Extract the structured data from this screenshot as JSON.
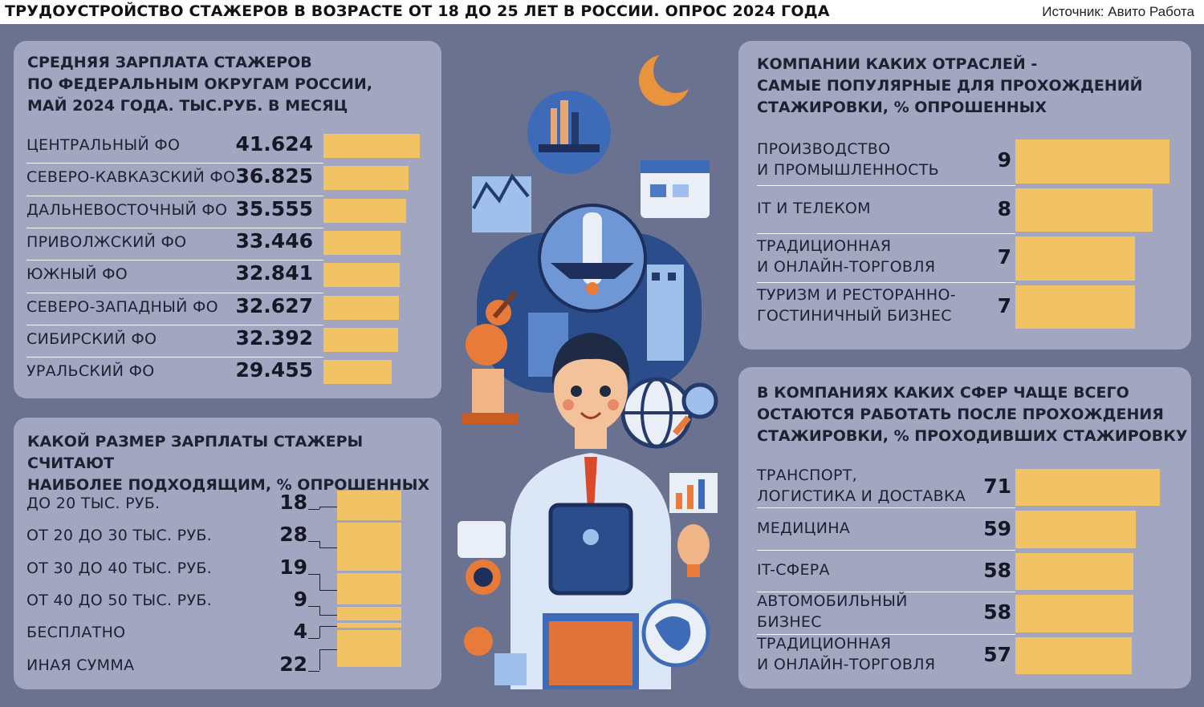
{
  "header": {
    "title": "ТРУДОУСТРОЙСТВО СТАЖЕРОВ В ВОЗРАСТЕ ОТ 18 ДО 25 ЛЕТ В РОССИИ. ОПРОС 2024 ГОДА",
    "source": "Источник: Авито Работа"
  },
  "chart_data": [
    {
      "type": "bar",
      "title": "СРЕДНЯЯ ЗАРПЛАТА СТАЖЕРОВ ПО ФЕДЕРАЛЬНЫМ ОКРУГАМ РОССИИ, МАЙ 2024 ГОДА. ТЫС.РУБ. В МЕСЯЦ",
      "title_lines": [
        "СРЕДНЯЯ ЗАРПЛАТА СТАЖЕРОВ",
        "ПО ФЕДЕРАЛЬНЫМ ОКРУГАМ РОССИИ,",
        "МАЙ 2024 ГОДА. ТЫС.РУБ. В МЕСЯЦ"
      ],
      "orientation": "horizontal",
      "categories": [
        "ЦЕНТРАЛЬНЫЙ ФО",
        "СЕВЕРО-КАВКАЗСКИЙ ФО",
        "ДАЛЬНЕВОСТОЧНЫЙ ФО",
        "ПРИВОЛЖСКИЙ ФО",
        "ЮЖНЫЙ ФО",
        "СЕВЕРО-ЗАПАДНЫЙ ФО",
        "СИБИРСКИЙ ФО",
        "УРАЛЬСКИЙ ФО"
      ],
      "values": [
        41.624,
        36.825,
        35.555,
        33.446,
        32.841,
        32.627,
        32.392,
        29.455
      ],
      "value_labels": [
        "41.624",
        "36.825",
        "35.555",
        "33.446",
        "32.841",
        "32.627",
        "32.392",
        "29.455"
      ],
      "bar_color": "#f2c365"
    },
    {
      "type": "bar",
      "title": "КАКОЙ РАЗМЕР ЗАРПЛАТЫ СТАЖЕРЫ СЧИТАЮТ НАИБОЛЕЕ ПОДХОДЯЩИМ, % ОПРОШЕННЫХ",
      "title_lines": [
        "КАКОЙ РАЗМЕР ЗАРПЛАТЫ СТАЖЕРЫ СЧИТАЮТ",
        "НАИБОЛЕЕ ПОДХОДЯЩИМ, % ОПРОШЕННЫХ"
      ],
      "orientation": "stacked-vertical",
      "categories": [
        "ДО 20 ТЫС. РУБ.",
        "ОТ 20 ДО 30 ТЫС. РУБ.",
        "ОТ 30 ДО 40 ТЫС. РУБ.",
        "ОТ 40 ДО 50 ТЫС. РУБ.",
        "БЕСПЛАТНО",
        "ИНАЯ СУММА"
      ],
      "values": [
        18,
        28,
        19,
        9,
        4,
        22
      ],
      "value_labels": [
        "18",
        "28",
        "19",
        "9",
        "4",
        "22"
      ],
      "bar_color": "#f2c365"
    },
    {
      "type": "bar",
      "title": "КОМПАНИИ КАКИХ ОТРАСЛЕЙ - САМЫЕ ПОПУЛЯРНЫЕ ДЛЯ ПРОХОЖДЕНИЙ СТАЖИРОВКИ, % ОПРОШЕННЫХ",
      "title_lines": [
        "КОМПАНИИ КАКИХ ОТРАСЛЕЙ -",
        "САМЫЕ ПОПУЛЯРНЫЕ ДЛЯ ПРОХОЖДЕНИЙ",
        "СТАЖИРОВКИ, % ОПРОШЕННЫХ"
      ],
      "orientation": "horizontal",
      "categories": [
        [
          "ПРОИЗВОДСТВО",
          "И ПРОМЫШЛЕННОСТЬ"
        ],
        [
          "IT И ТЕЛЕКОМ"
        ],
        [
          "ТРАДИЦИОННАЯ",
          "И ОНЛАЙН-ТОРГОВЛЯ"
        ],
        [
          "ТУРИЗМ И РЕСТОРАННО-",
          "ГОСТИНИЧНЫЙ БИЗНЕС"
        ]
      ],
      "values": [
        9,
        8,
        7,
        7
      ],
      "value_labels": [
        "9",
        "8",
        "7",
        "7"
      ],
      "bar_color": "#f2c365"
    },
    {
      "type": "bar",
      "title": "В КОМПАНИЯХ КАКИХ СФЕР ЧАЩЕ ВСЕГО ОСТАЮТСЯ РАБОТАТЬ ПОСЛЕ ПРОХОЖДЕНИЯ СТАЖИРОВКИ, % ПРОХОДИВШИХ СТАЖИРОВКУ",
      "title_lines": [
        "В КОМПАНИЯХ КАКИХ СФЕР ЧАЩЕ ВСЕГО",
        "ОСТАЮТСЯ РАБОТАТЬ ПОСЛЕ ПРОХОЖДЕНИЯ",
        "СТАЖИРОВКИ, % ПРОХОДИВШИХ СТАЖИРОВКУ"
      ],
      "orientation": "horizontal",
      "categories": [
        [
          "ТРАНСПОРТ,",
          "ЛОГИСТИКА И ДОСТАВКА"
        ],
        [
          "МЕДИЦИНА"
        ],
        [
          "IT-СФЕРА"
        ],
        [
          "АВТОМОБИЛЬНЫЙ",
          "БИЗНЕС"
        ],
        [
          "ТРАДИЦИОННАЯ",
          "И ОНЛАЙН-ТОРГОВЛЯ"
        ]
      ],
      "values": [
        71,
        59,
        58,
        58,
        57
      ],
      "value_labels": [
        "71",
        "59",
        "58",
        "58",
        "57"
      ],
      "bar_color": "#f2c365"
    }
  ],
  "illustration": {
    "icons": [
      "moon-icon",
      "city-globe-icon",
      "calendar-icon",
      "rocket-icon",
      "guitar-icon",
      "microscope-icon",
      "building-icon",
      "globe-icon",
      "magnifier-icon",
      "chart-icon",
      "chat-icon",
      "lightbulb-icon",
      "clock-icon",
      "earth-icon",
      "laptop-icon",
      "cup-icon",
      "person-icon",
      "tablet-icon"
    ],
    "palette": {
      "navy": "#243a6b",
      "blue": "#4d79c4",
      "light_blue": "#9fc0ea",
      "orange": "#e87b3a",
      "peach": "#f0b586",
      "skin": "#f3c29b",
      "hair": "#1f2a44"
    }
  }
}
